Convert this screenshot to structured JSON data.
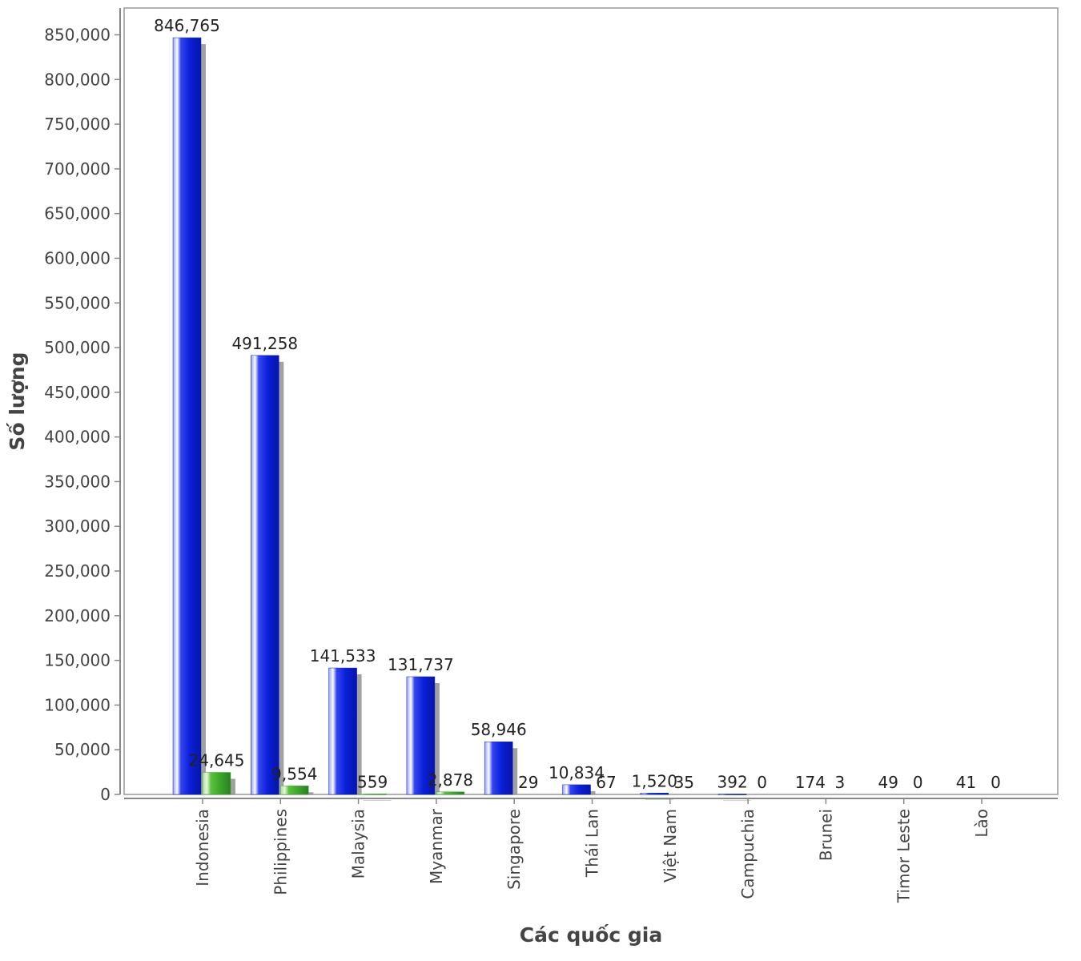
{
  "chart_data": {
    "type": "bar",
    "xlabel": "Các quốc gia",
    "ylabel": "Số lượng",
    "categories": [
      "Indonesia",
      "Philippines",
      "Malaysia",
      "Myanmar",
      "Singapore",
      "Thái Lan",
      "Việt Nam",
      "Campuchia",
      "Brunei",
      "Timor Leste",
      "Lào"
    ],
    "series": [
      {
        "values": [
          846765,
          491258,
          141533,
          131737,
          58946,
          10834,
          1520,
          392,
          174,
          49,
          41
        ],
        "color": "#0b1fd6"
      },
      {
        "values": [
          24645,
          9554,
          559,
          2878,
          29,
          67,
          35,
          0,
          3,
          0,
          0
        ],
        "color": "#3aaa2a"
      }
    ],
    "data_labels": [
      [
        "846,765",
        "491,258",
        "141,533",
        "131,737",
        "58,946",
        "10,834",
        "1,520",
        "392",
        "174",
        "49",
        "41"
      ],
      [
        "24,645",
        "9,554",
        "559",
        "2,878",
        "29",
        "67",
        "35",
        "0",
        "3",
        "0",
        "0"
      ]
    ],
    "ylim": [
      0,
      880000
    ],
    "yticks": [
      0,
      50000,
      100000,
      150000,
      200000,
      250000,
      300000,
      350000,
      400000,
      450000,
      500000,
      550000,
      600000,
      650000,
      700000,
      750000,
      800000,
      850000
    ],
    "ytick_labels": [
      "0",
      "50,000",
      "100,000",
      "150,000",
      "200,000",
      "250,000",
      "300,000",
      "350,000",
      "400,000",
      "450,000",
      "500,000",
      "550,000",
      "600,000",
      "650,000",
      "700,000",
      "750,000",
      "800,000",
      "850,000"
    ],
    "grid": false,
    "legend": "none",
    "colors": {
      "axis": "#888888",
      "plot_border": "#999999",
      "shadow": "#8a8a8a"
    }
  }
}
